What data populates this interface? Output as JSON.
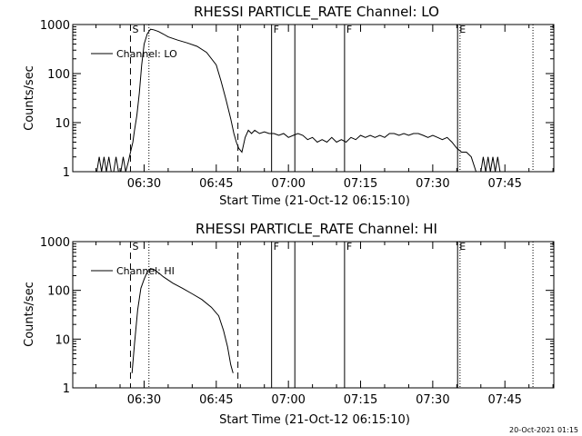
{
  "footer_stamp": "20-Oct-2021 01:15",
  "chart_data": [
    {
      "type": "line",
      "title": "RHESSI PARTICLE_RATE Channel: LO",
      "xlabel": "Start Time (21-Oct-12 06:15:10)",
      "ylabel": "Counts/sec",
      "y_scale": "log",
      "ylim": [
        1,
        1000
      ],
      "xlim": [
        "06:15:10",
        "07:55:10"
      ],
      "x_tick_labels": [
        "06:30",
        "06:45",
        "07:00",
        "07:15",
        "07:30",
        "07:45"
      ],
      "y_tick_labels": [
        "1",
        "10",
        "100",
        "1000"
      ],
      "legend": {
        "label": "Channel: LO",
        "placement": "top-left"
      },
      "markers": [
        {
          "label": "S",
          "time": "06:27:10",
          "style": "dashed"
        },
        {
          "label": "",
          "time": "06:49:30",
          "style": "dashed"
        },
        {
          "label": "",
          "time": "06:31:00",
          "style": "dotted"
        },
        {
          "label": "F",
          "time": "06:56:30",
          "style": "solid"
        },
        {
          "label": "",
          "time": "07:01:20",
          "style": "solid"
        },
        {
          "label": "F",
          "time": "07:11:40",
          "style": "solid"
        },
        {
          "label": "E",
          "time": "07:35:10",
          "style": "solid"
        },
        {
          "label": "",
          "time": "07:35:40",
          "style": "dotted"
        },
        {
          "label": "",
          "time": "07:50:50",
          "style": "dotted"
        }
      ],
      "series": [
        {
          "name": "Channel: LO",
          "x": [
            "06:20:10",
            "06:20:40",
            "06:21:10",
            "06:21:40",
            "06:22:10",
            "06:22:40",
            "06:23:10",
            "06:23:40",
            "06:24:10",
            "06:24:40",
            "06:25:10",
            "06:25:40",
            "06:26:10",
            "06:26:40",
            "06:27:10",
            "06:27:40",
            "06:28:00",
            "06:28:30",
            "06:29:00",
            "06:29:30",
            "06:30:00",
            "06:30:40",
            "06:31:20",
            "06:32:00",
            "06:33:00",
            "06:34:00",
            "06:35:00",
            "06:37:00",
            "06:39:00",
            "06:41:00",
            "06:43:00",
            "06:45:00",
            "06:46:00",
            "06:47:00",
            "06:48:00",
            "06:48:40",
            "06:49:10",
            "06:49:40",
            "06:50:20",
            "06:51:00",
            "06:51:40",
            "06:52:20",
            "06:53:00",
            "06:54:00",
            "06:55:00",
            "06:56:00",
            "06:57:00",
            "06:58:00",
            "06:59:00",
            "07:00:00",
            "07:01:00",
            "07:02:00",
            "07:03:00",
            "07:04:00",
            "07:05:00",
            "07:06:00",
            "07:07:00",
            "07:08:00",
            "07:09:00",
            "07:10:00",
            "07:11:00",
            "07:12:00",
            "07:13:00",
            "07:14:00",
            "07:15:00",
            "07:16:00",
            "07:17:00",
            "07:18:00",
            "07:19:00",
            "07:20:00",
            "07:21:00",
            "07:22:00",
            "07:23:00",
            "07:24:00",
            "07:25:00",
            "07:26:00",
            "07:27:00",
            "07:28:00",
            "07:29:00",
            "07:30:00",
            "07:31:00",
            "07:32:00",
            "07:33:00",
            "07:34:00",
            "07:35:00",
            "07:36:00",
            "07:37:00",
            "07:38:00",
            "07:39:00",
            "07:39:30",
            "07:40:00",
            "07:40:30",
            "07:41:00",
            "07:41:30",
            "07:42:00",
            "07:42:30",
            "07:43:00",
            "07:43:30",
            "07:44:00",
            "07:44:30"
          ],
          "y": [
            1,
            2,
            1,
            2,
            1,
            2,
            1,
            1,
            2,
            1,
            1,
            2,
            1,
            1.5,
            2.5,
            4,
            7,
            14,
            40,
            150,
            400,
            650,
            800,
            780,
            720,
            640,
            560,
            480,
            420,
            360,
            270,
            150,
            70,
            30,
            12,
            6,
            4,
            3,
            2.5,
            5,
            7,
            6,
            7,
            6,
            6.5,
            6,
            6,
            5.5,
            6,
            5,
            5.5,
            6,
            5.5,
            4.5,
            5,
            4,
            4.5,
            4,
            5,
            4,
            4.5,
            4,
            5,
            4.5,
            5.5,
            5,
            5.5,
            5,
            5.5,
            5,
            6,
            6,
            5.5,
            6,
            5.5,
            6,
            6,
            5.5,
            5,
            5.5,
            5,
            4.5,
            5,
            4,
            3,
            2.5,
            2.5,
            2,
            1,
            1,
            1,
            2,
            1,
            2,
            1,
            2,
            1,
            2,
            1,
            1
          ]
        }
      ]
    },
    {
      "type": "line",
      "title": "RHESSI PARTICLE_RATE Channel: HI",
      "xlabel": "Start Time (21-Oct-12 06:15:10)",
      "ylabel": "Counts/sec",
      "y_scale": "log",
      "ylim": [
        1,
        1000
      ],
      "xlim": [
        "06:15:10",
        "07:55:10"
      ],
      "x_tick_labels": [
        "06:30",
        "06:45",
        "07:00",
        "07:15",
        "07:30",
        "07:45"
      ],
      "y_tick_labels": [
        "1",
        "10",
        "100",
        "1000"
      ],
      "legend": {
        "label": "Channel: HI",
        "placement": "top-left"
      },
      "markers": [
        {
          "label": "S",
          "time": "06:27:10",
          "style": "dashed"
        },
        {
          "label": "",
          "time": "06:49:30",
          "style": "dashed"
        },
        {
          "label": "",
          "time": "06:31:00",
          "style": "dotted"
        },
        {
          "label": "F",
          "time": "06:56:30",
          "style": "solid"
        },
        {
          "label": "",
          "time": "07:01:20",
          "style": "solid"
        },
        {
          "label": "F",
          "time": "07:11:40",
          "style": "solid"
        },
        {
          "label": "E",
          "time": "07:35:10",
          "style": "solid"
        },
        {
          "label": "",
          "time": "07:35:40",
          "style": "dotted"
        },
        {
          "label": "",
          "time": "07:50:50",
          "style": "dotted"
        }
      ],
      "series": [
        {
          "name": "Channel: HI",
          "x": [
            "06:27:30",
            "06:28:00",
            "06:28:40",
            "06:29:20",
            "06:30:00",
            "06:30:40",
            "06:31:20",
            "06:32:00",
            "06:33:00",
            "06:34:00",
            "06:36:00",
            "06:38:00",
            "06:40:00",
            "06:42:00",
            "06:44:00",
            "06:45:30",
            "06:46:30",
            "06:47:20",
            "06:48:00",
            "06:48:30"
          ],
          "y": [
            2,
            8,
            40,
            110,
            170,
            240,
            280,
            270,
            230,
            190,
            140,
            110,
            85,
            65,
            45,
            30,
            15,
            7,
            3,
            2
          ]
        }
      ]
    }
  ]
}
